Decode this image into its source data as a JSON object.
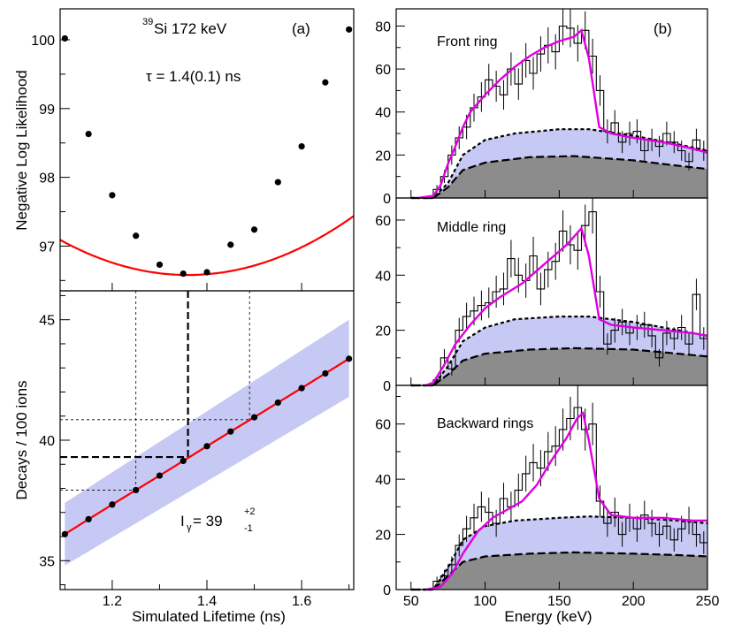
{
  "chart_data": [
    {
      "id": "a_top",
      "type": "scatter",
      "panel_label": "(a)",
      "annotations": {
        "isotope_mass": "39",
        "isotope_rest": "Si 172 keV",
        "tau": "τ = 1.4(0.1) ns"
      },
      "ylabel": "Negative Log Likelihood",
      "xlim": [
        1.09,
        1.71
      ],
      "ylim": [
        96.35,
        100.45
      ],
      "yticks": [
        97,
        98,
        99,
        100
      ],
      "points": {
        "x": [
          1.1,
          1.15,
          1.2,
          1.25,
          1.3,
          1.35,
          1.4,
          1.45,
          1.5,
          1.55,
          1.6,
          1.65,
          1.7
        ],
        "y": [
          100.02,
          98.63,
          97.74,
          97.15,
          96.73,
          96.6,
          96.62,
          97.02,
          97.24,
          97.93,
          98.45,
          99.38,
          100.15
        ]
      },
      "fit": {
        "a": 7.0,
        "x0": 1.36,
        "c": 96.58,
        "color": "#ff0000"
      }
    },
    {
      "id": "a_bottom",
      "type": "line",
      "xlabel": "Simulated Lifetime (ns)",
      "ylabel": "Decays / 100 ions",
      "xlim": [
        1.09,
        1.71
      ],
      "ylim": [
        33.8,
        46.2
      ],
      "xticks": [
        1.2,
        1.4,
        1.6
      ],
      "xtick_labels": [
        "1.2",
        "1.4",
        "1.6"
      ],
      "yticks": [
        35,
        40,
        45
      ],
      "points": {
        "x": [
          1.1,
          1.15,
          1.2,
          1.25,
          1.3,
          1.35,
          1.4,
          1.45,
          1.5,
          1.55,
          1.6,
          1.65,
          1.7
        ],
        "y": [
          36.1,
          36.72,
          37.33,
          37.93,
          38.53,
          39.14,
          39.75,
          40.36,
          40.95,
          41.56,
          42.16,
          42.77,
          43.38
        ]
      },
      "band": {
        "lower_start": 34.8,
        "lower_end": 41.8,
        "upper_start": 37.4,
        "upper_end": 45.0,
        "color": "#c7c9f5"
      },
      "line_color": "#ff0000",
      "guides": {
        "thick": {
          "x": 1.36,
          "y": 39.3
        },
        "thin": [
          {
            "x": 1.25,
            "y": 37.93
          },
          {
            "x": 1.49,
            "y": 40.85
          }
        ]
      },
      "result": {
        "base": "I",
        "sub": "γ",
        "eq": " = 39",
        "sup": "+2",
        "low": "-1"
      }
    },
    {
      "id": "b",
      "type": "bar",
      "panel_label": "(b)",
      "xlabel": "Energy (keV)",
      "xlim": [
        40,
        250
      ],
      "xticks": [
        50,
        100,
        150,
        200,
        250
      ],
      "bin_edges_start": 65,
      "bin_width": 5,
      "colors": {
        "band": "#c7c9f5",
        "gray": "#8c8c8c",
        "fit": "#e000e0"
      },
      "rings": [
        {
          "name": "Front ring",
          "ylim": [
            0,
            88
          ],
          "yticks": [
            0,
            20,
            40,
            60,
            80
          ],
          "counts": [
            4,
            10,
            20,
            28,
            33,
            42,
            47,
            55,
            52,
            48,
            60,
            53,
            64,
            58,
            67,
            71,
            68,
            80,
            79,
            72,
            78,
            66,
            50,
            31,
            35,
            26,
            30,
            31,
            22,
            27,
            24,
            30,
            26,
            22,
            17,
            27,
            22
          ],
          "errors": [
            2,
            3,
            4.5,
            5.3,
            5.7,
            6.5,
            6.9,
            7.4,
            7.2,
            6.9,
            7.7,
            7.3,
            8,
            7.6,
            8.2,
            8.4,
            8.2,
            8.9,
            8.9,
            8.5,
            8.8,
            8.1,
            7.1,
            5.6,
            5.9,
            5.1,
            5.5,
            5.6,
            4.7,
            5.2,
            4.9,
            5.5,
            5.1,
            4.7,
            4.1,
            5.2,
            4.7
          ],
          "fit": [
            [
              55,
              0
            ],
            [
              65,
              1
            ],
            [
              70,
              6
            ],
            [
              75,
              16
            ],
            [
              80,
              24
            ],
            [
              85,
              33
            ],
            [
              90,
              40
            ],
            [
              100,
              48
            ],
            [
              110,
              55
            ],
            [
              120,
              61
            ],
            [
              130,
              66
            ],
            [
              140,
              70
            ],
            [
              150,
              73
            ],
            [
              160,
              75
            ],
            [
              165,
              78
            ],
            [
              170,
              65
            ],
            [
              177,
              33
            ],
            [
              185,
              30
            ],
            [
              200,
              28
            ],
            [
              220,
              26
            ],
            [
              240,
              23
            ],
            [
              250,
              21
            ]
          ],
          "band_top": [
            [
              50,
              0
            ],
            [
              65,
              0
            ],
            [
              75,
              7
            ],
            [
              85,
              20
            ],
            [
              100,
              27
            ],
            [
              120,
              30
            ],
            [
              150,
              32
            ],
            [
              170,
              32
            ],
            [
              200,
              29
            ],
            [
              230,
              25
            ],
            [
              250,
              22
            ]
          ],
          "gray_top": [
            [
              50,
              0
            ],
            [
              65,
              0
            ],
            [
              75,
              5
            ],
            [
              85,
              13
            ],
            [
              100,
              16.5
            ],
            [
              130,
              19
            ],
            [
              160,
              19.5
            ],
            [
              200,
              17.5
            ],
            [
              230,
              15
            ],
            [
              250,
              13.5
            ]
          ]
        },
        {
          "name": "Middle ring",
          "ylim": [
            0,
            68
          ],
          "yticks": [
            0,
            20,
            40,
            60
          ],
          "counts": [
            2,
            10,
            6,
            20,
            25,
            27,
            29,
            30,
            34,
            35,
            46,
            40,
            38,
            47,
            35,
            42,
            45,
            56,
            51,
            49,
            58,
            63,
            34,
            15,
            20,
            23,
            19,
            21,
            22,
            18,
            10,
            19,
            17,
            21,
            15,
            33,
            17
          ],
          "errors": [
            1.4,
            3.2,
            2.4,
            4.5,
            5,
            5.2,
            5.4,
            5.5,
            5.8,
            5.9,
            6.8,
            6.3,
            6.2,
            6.9,
            5.9,
            6.5,
            6.7,
            7.5,
            7.1,
            7,
            7.6,
            7.9,
            5.8,
            3.9,
            4.5,
            4.8,
            4.4,
            4.6,
            4.7,
            4.2,
            3.2,
            4.4,
            4.1,
            4.6,
            3.9,
            5.7,
            4.1
          ],
          "fit": [
            [
              60,
              0
            ],
            [
              65,
              1
            ],
            [
              72,
              7
            ],
            [
              80,
              15
            ],
            [
              90,
              22
            ],
            [
              100,
              28
            ],
            [
              110,
              32
            ],
            [
              125,
              37
            ],
            [
              140,
              44
            ],
            [
              155,
              51
            ],
            [
              165,
              57
            ],
            [
              170,
              47
            ],
            [
              177,
              24
            ],
            [
              185,
              22
            ],
            [
              200,
              21
            ],
            [
              220,
              20
            ],
            [
              240,
              19
            ],
            [
              250,
              18
            ]
          ],
          "band_top": [
            [
              50,
              0
            ],
            [
              65,
              0
            ],
            [
              75,
              7
            ],
            [
              85,
              16
            ],
            [
              100,
              21
            ],
            [
              120,
              24
            ],
            [
              150,
              25
            ],
            [
              170,
              25
            ],
            [
              200,
              23
            ],
            [
              230,
              20
            ],
            [
              250,
              18
            ]
          ],
          "gray_top": [
            [
              50,
              0
            ],
            [
              65,
              0
            ],
            [
              75,
              4
            ],
            [
              85,
              9
            ],
            [
              100,
              11.5
            ],
            [
              130,
              13
            ],
            [
              160,
              13.5
            ],
            [
              200,
              13
            ],
            [
              230,
              11.5
            ],
            [
              250,
              10.5
            ]
          ]
        },
        {
          "name": "Backward rings",
          "ylim": [
            0,
            74
          ],
          "yticks": [
            0,
            20,
            40,
            60
          ],
          "counts": [
            3,
            5,
            9,
            16,
            22,
            26,
            30,
            28,
            24,
            33,
            30,
            36,
            42,
            46,
            44,
            50,
            52,
            58,
            62,
            66,
            58,
            60,
            32,
            24,
            28,
            20,
            26,
            22,
            27,
            24,
            20,
            23,
            18,
            22,
            25,
            20,
            17
          ],
          "errors": [
            1.7,
            2.2,
            3,
            4,
            4.7,
            5.1,
            5.5,
            5.3,
            4.9,
            5.7,
            5.5,
            6,
            6.5,
            6.8,
            6.6,
            7.1,
            7.2,
            7.6,
            7.9,
            8.1,
            7.6,
            7.7,
            5.7,
            4.9,
            5.3,
            4.5,
            5.1,
            4.7,
            5.2,
            4.9,
            4.5,
            4.8,
            4.2,
            4.7,
            5,
            4.5,
            4.1
          ],
          "fit": [
            [
              60,
              0
            ],
            [
              70,
              1
            ],
            [
              78,
              6
            ],
            [
              85,
              13
            ],
            [
              95,
              21
            ],
            [
              105,
              26
            ],
            [
              115,
              29
            ],
            [
              125,
              32
            ],
            [
              135,
              38
            ],
            [
              145,
              47
            ],
            [
              155,
              55
            ],
            [
              162,
              62
            ],
            [
              166,
              64
            ],
            [
              170,
              54
            ],
            [
              177,
              33
            ],
            [
              185,
              27
            ],
            [
              200,
              26
            ],
            [
              220,
              26
            ],
            [
              240,
              25
            ],
            [
              250,
              25
            ]
          ],
          "band_top": [
            [
              50,
              0
            ],
            [
              65,
              0
            ],
            [
              75,
              8
            ],
            [
              85,
              18
            ],
            [
              100,
              23
            ],
            [
              120,
              25
            ],
            [
              150,
              26
            ],
            [
              170,
              26.5
            ],
            [
              200,
              26
            ],
            [
              230,
              25
            ],
            [
              250,
              24
            ]
          ],
          "gray_top": [
            [
              50,
              0
            ],
            [
              65,
              0
            ],
            [
              75,
              5
            ],
            [
              85,
              10
            ],
            [
              100,
              12
            ],
            [
              130,
              13
            ],
            [
              160,
              13.5
            ],
            [
              200,
              13
            ],
            [
              230,
              12.5
            ],
            [
              250,
              12
            ]
          ]
        }
      ]
    }
  ]
}
